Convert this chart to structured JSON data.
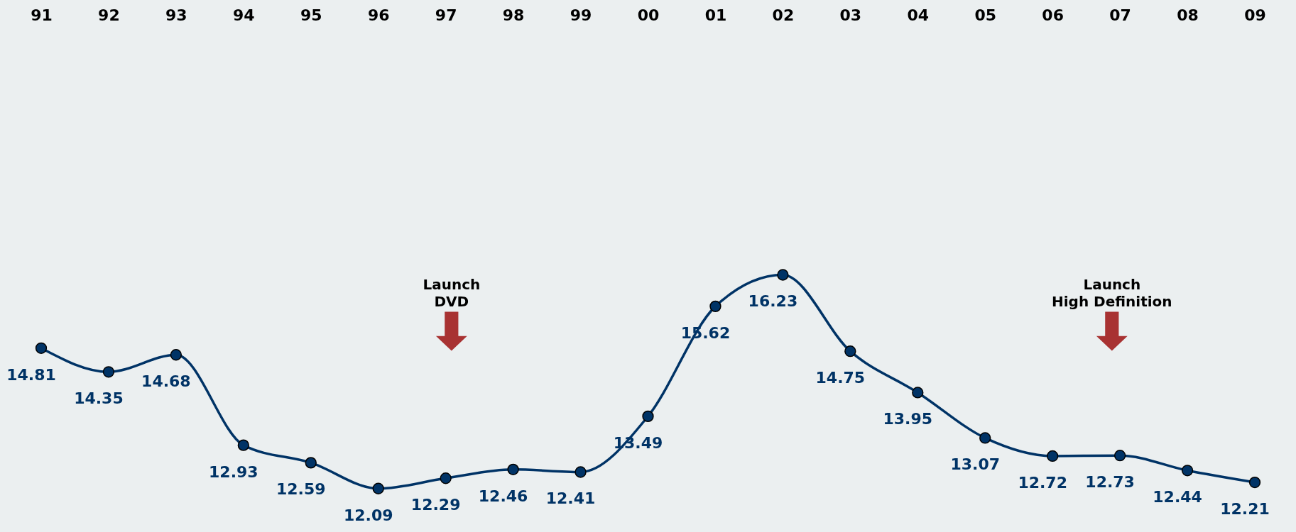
{
  "chart_data": {
    "type": "line",
    "categories": [
      "91",
      "92",
      "93",
      "94",
      "95",
      "96",
      "97",
      "98",
      "99",
      "00",
      "01",
      "02",
      "03",
      "04",
      "05",
      "06",
      "07",
      "08",
      "09"
    ],
    "series": [
      {
        "color": "#003366",
        "values": [
          14.81,
          14.35,
          14.68,
          12.93,
          12.59,
          12.09,
          12.29,
          12.46,
          12.41,
          13.49,
          15.62,
          16.23,
          14.75,
          13.95,
          13.07,
          12.72,
          12.73,
          12.44,
          12.21
        ]
      }
    ],
    "data_labels": true,
    "marker": "circle",
    "line_style": "solid",
    "grid": false,
    "annotations": [
      "Launch\nDVD",
      "Launch\nHigh Definition"
    ]
  }
}
